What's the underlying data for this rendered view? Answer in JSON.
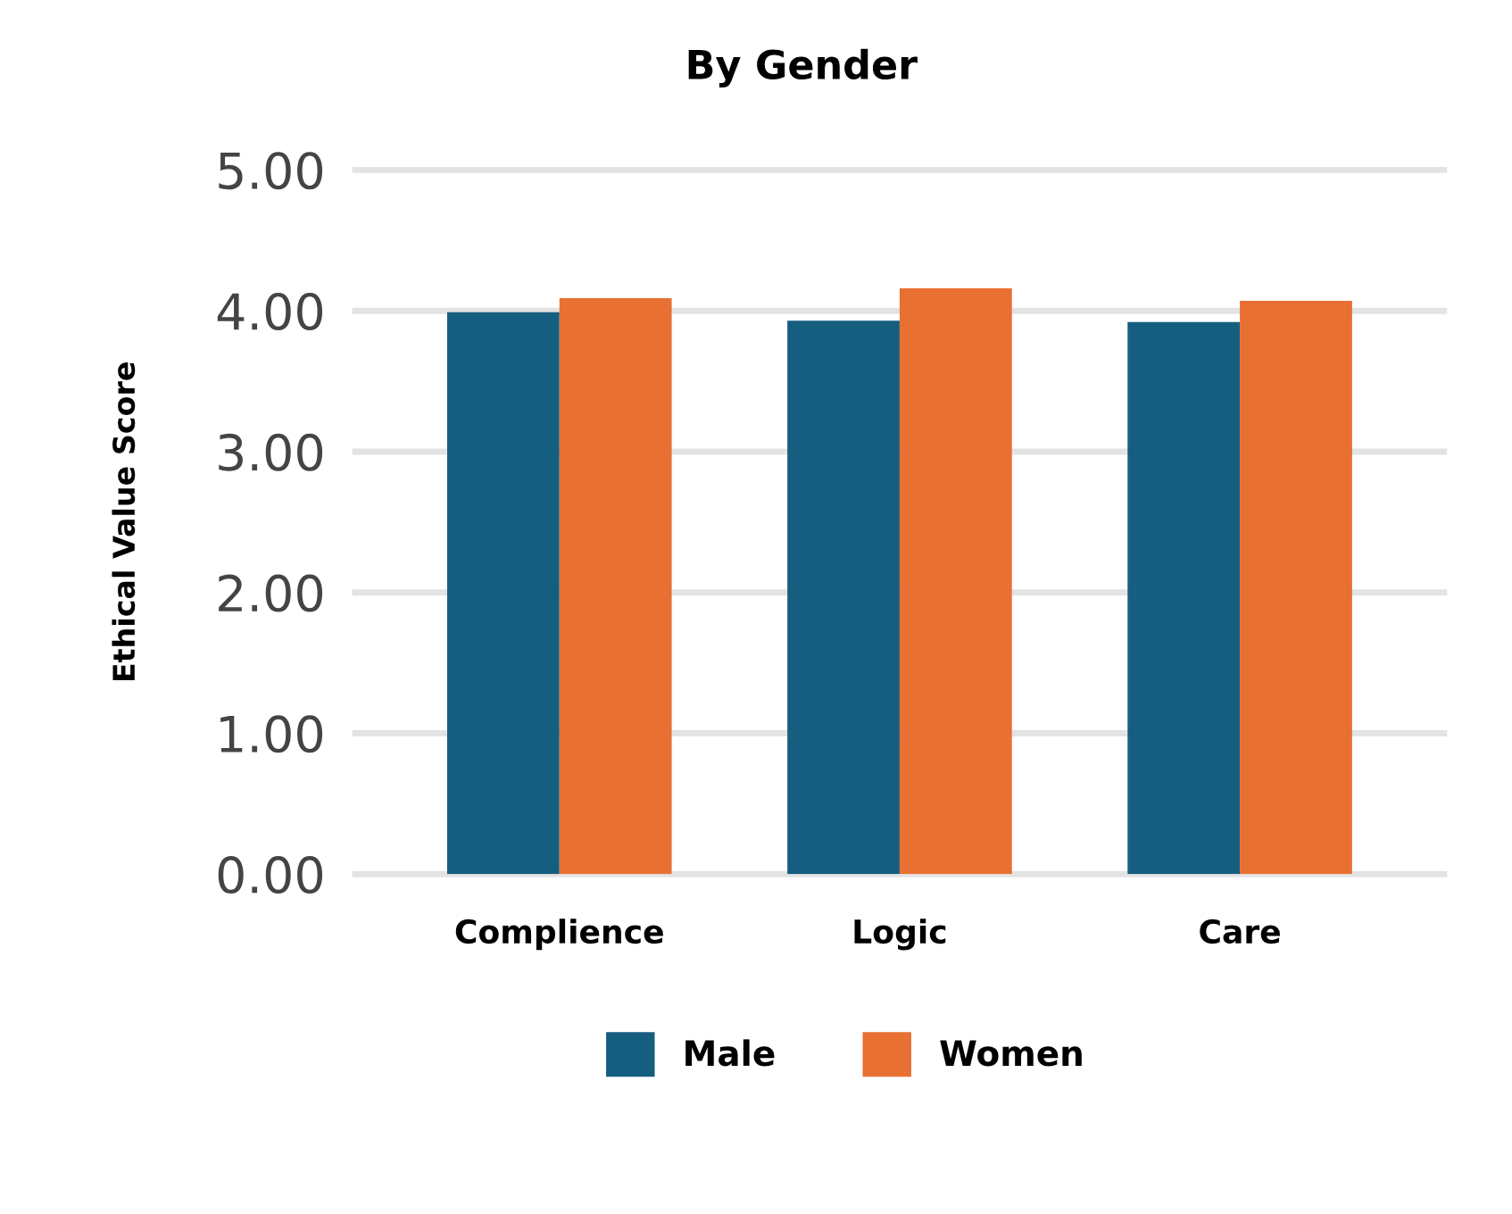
{
  "chart_data": {
    "type": "bar",
    "title": "By Gender",
    "ylabel": "Ethical Value Score",
    "categories": [
      "Complience",
      "Logic",
      "Care"
    ],
    "series": [
      {
        "name": "Male",
        "color": "#165e80",
        "values": [
          3.99,
          3.93,
          3.92
        ]
      },
      {
        "name": "Women",
        "color": "#e87032",
        "values": [
          4.09,
          4.16,
          4.07
        ]
      }
    ],
    "ylim": [
      0,
      5
    ],
    "yticks": [
      {
        "value": 0,
        "label": "0.00"
      },
      {
        "value": 1,
        "label": "1.00"
      },
      {
        "value": 2,
        "label": "2.00"
      },
      {
        "value": 3,
        "label": "3.00"
      },
      {
        "value": 4,
        "label": "4.00"
      },
      {
        "value": 5,
        "label": "5.00"
      }
    ],
    "grid": "y",
    "legend": "bottom"
  }
}
